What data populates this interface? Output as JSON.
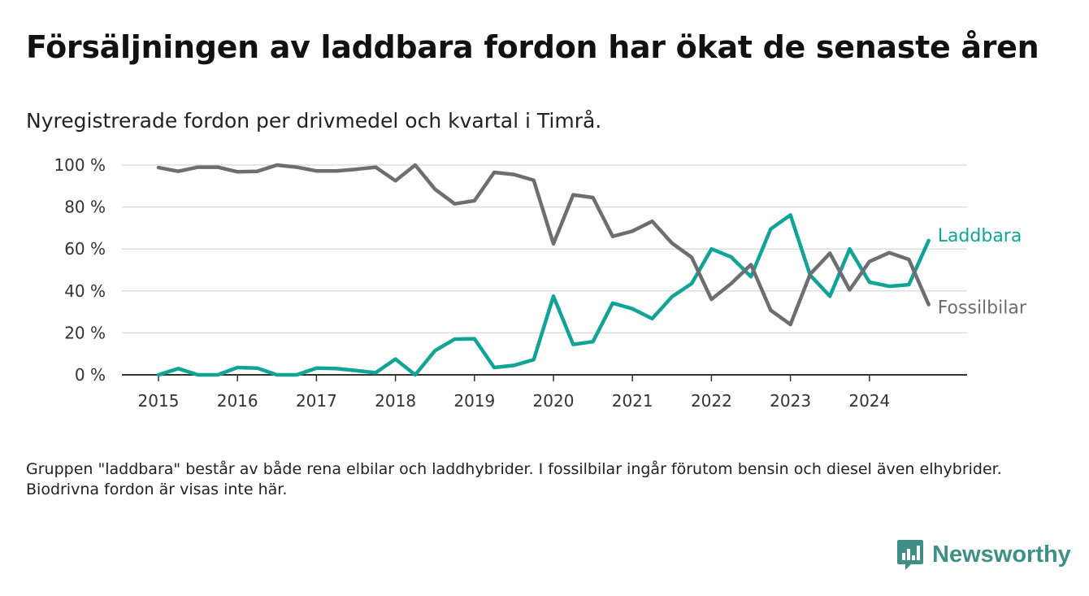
{
  "title": "Försäljningen av laddbara fordon har ökat de senaste åren",
  "subtitle": "Nyregistrerade fordon per drivmedel och kvartal i Timrå.",
  "note": "Gruppen \"laddbara\" består av både rena elbilar och laddhybrider. I fossilbilar ingår förutom bensin och diesel även elhybrider. Biodrivna fordon är visas inte här.",
  "brand": {
    "name": "Newsworthy",
    "icon": "newsworthy-logo-icon"
  },
  "colors": {
    "laddbara": "#11a396",
    "fossil": "#6f6c72",
    "grid": "#dddddd",
    "axis": "#333333"
  },
  "chart_data": {
    "type": "line",
    "xlabel": "",
    "ylabel": "",
    "ylim": [
      0,
      100
    ],
    "y_ticks": [
      "0 %",
      "20 %",
      "40 %",
      "60 %",
      "80 %",
      "100 %"
    ],
    "y_tick_values": [
      0,
      20,
      40,
      60,
      80,
      100
    ],
    "x_ticks": [
      "2015",
      "2016",
      "2017",
      "2018",
      "2019",
      "2020",
      "2021",
      "2022",
      "2023",
      "2024"
    ],
    "grid": true,
    "legend": "end-of-line labels",
    "x_start": 2015,
    "x_step": 0.25,
    "series": [
      {
        "name": "Laddbara",
        "key": "laddbara",
        "values": [
          0,
          3,
          0,
          0,
          3.5,
          3.2,
          0,
          0,
          3.2,
          3,
          2,
          1,
          7.5,
          0,
          11.5,
          17,
          17.2,
          3.5,
          4.5,
          7.2,
          37.5,
          14.5,
          15.8,
          34.2,
          31.5,
          26.8,
          37.2,
          43.5,
          60,
          56.2,
          46.8,
          69.5,
          76.2,
          47.5,
          37.5,
          60,
          44.2,
          42.2,
          43,
          64
        ]
      },
      {
        "name": "Fossilbilar",
        "key": "fossil",
        "values": [
          98.8,
          97,
          99,
          99,
          96.8,
          97,
          100,
          99,
          97.2,
          97.2,
          98,
          99,
          92.5,
          100,
          88.5,
          81.5,
          83,
          96.5,
          95.5,
          92.8,
          62.5,
          85.8,
          84.5,
          66,
          68.5,
          73.2,
          62.8,
          56,
          36,
          43.5,
          52.5,
          30.8,
          24,
          48,
          58,
          40.5,
          54,
          58.2,
          55,
          33.5
        ]
      }
    ]
  }
}
